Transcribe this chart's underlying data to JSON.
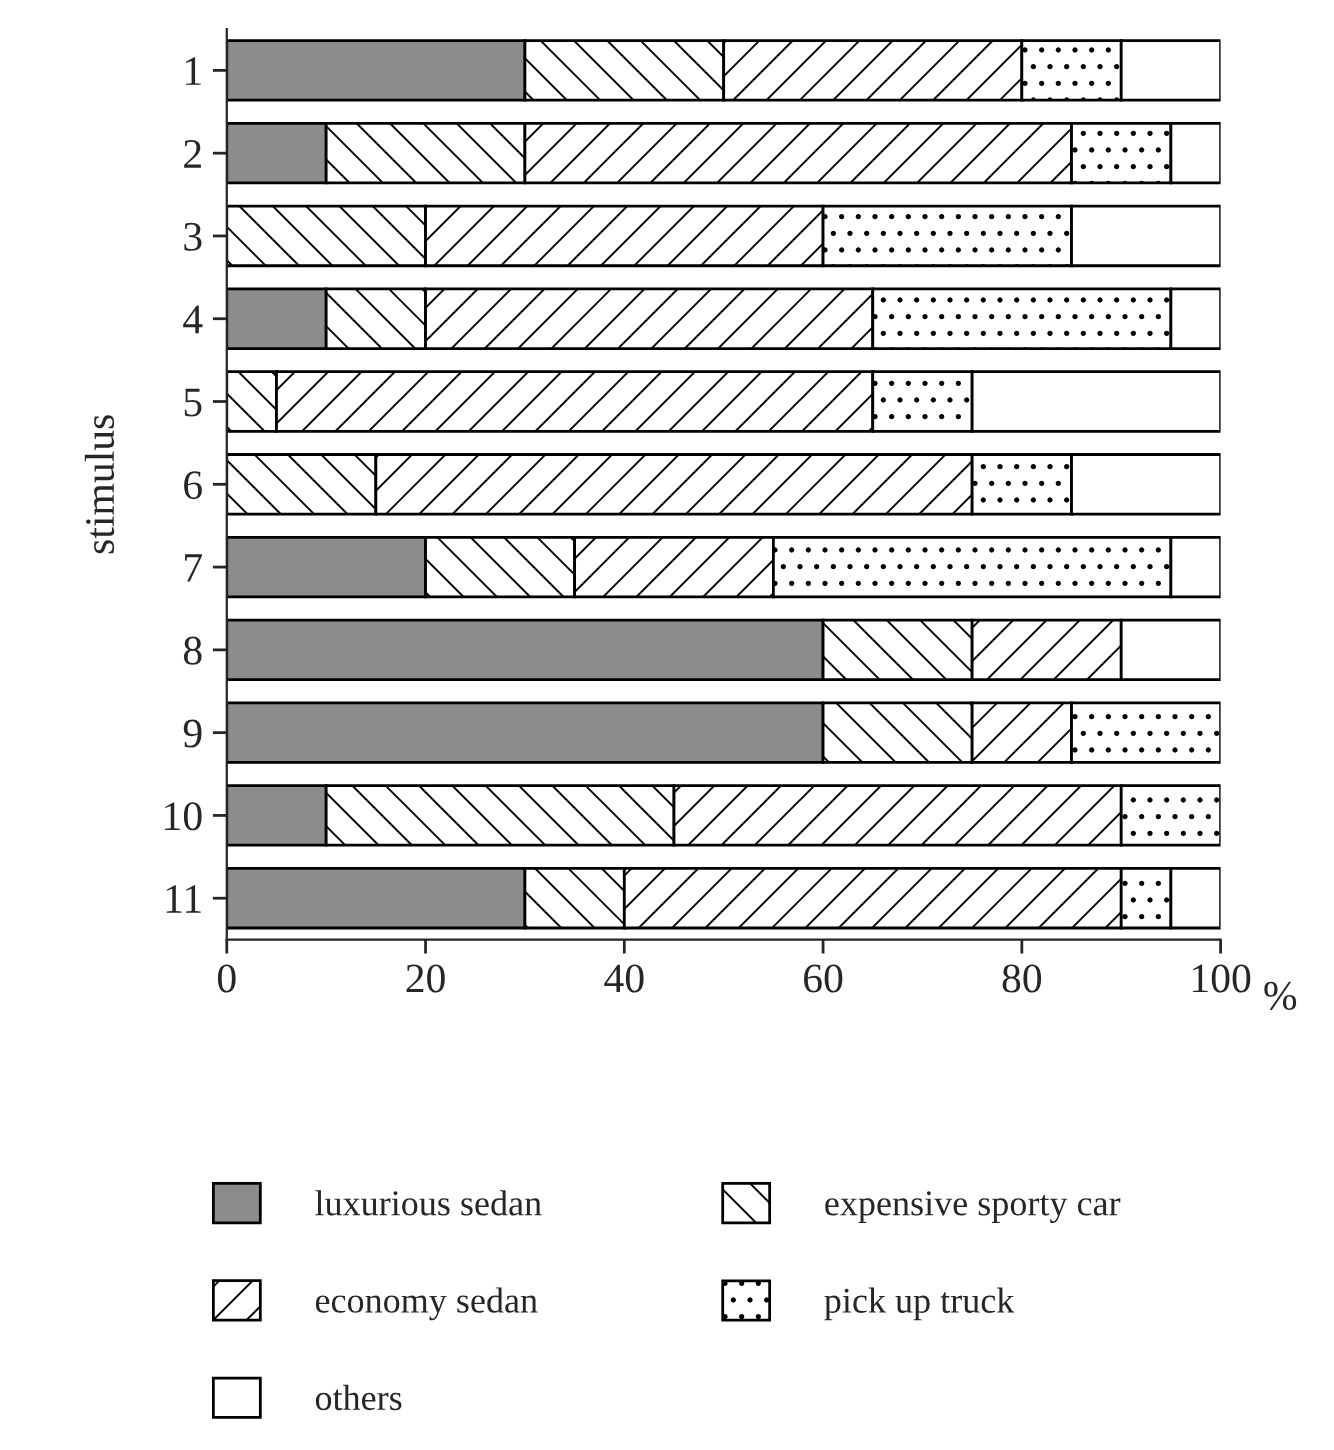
{
  "chart_data": {
    "type": "bar",
    "orientation": "horizontal",
    "stacked": true,
    "categories": [
      "1",
      "2",
      "3",
      "4",
      "5",
      "6",
      "7",
      "8",
      "9",
      "10",
      "11"
    ],
    "xlabel": "%",
    "ylabel": "stimulus",
    "xlim": [
      0,
      100
    ],
    "xticks": [
      0,
      20,
      40,
      60,
      80,
      100
    ],
    "grid": false,
    "legend": "bottom",
    "series": [
      {
        "name": "luxurious sedan",
        "color": "#8c8c8c",
        "values": [
          30,
          10,
          0,
          10,
          0,
          0,
          20,
          60,
          60,
          10,
          30
        ]
      },
      {
        "name": "expensive sporty car",
        "color": "#ffffff",
        "values": [
          20,
          20,
          20,
          10,
          5,
          15,
          15,
          15,
          15,
          35,
          10
        ]
      },
      {
        "name": "economy sedan",
        "color": "#ffffff",
        "values": [
          30,
          55,
          40,
          45,
          60,
          60,
          20,
          15,
          10,
          45,
          50
        ]
      },
      {
        "name": "pick up truck",
        "color": "#ffffff",
        "values": [
          10,
          10,
          25,
          30,
          10,
          10,
          40,
          0,
          15,
          10,
          5
        ]
      },
      {
        "name": "others",
        "color": "#ffffff",
        "values": [
          10,
          5,
          15,
          5,
          25,
          15,
          5,
          10,
          0,
          0,
          5
        ]
      }
    ]
  }
}
